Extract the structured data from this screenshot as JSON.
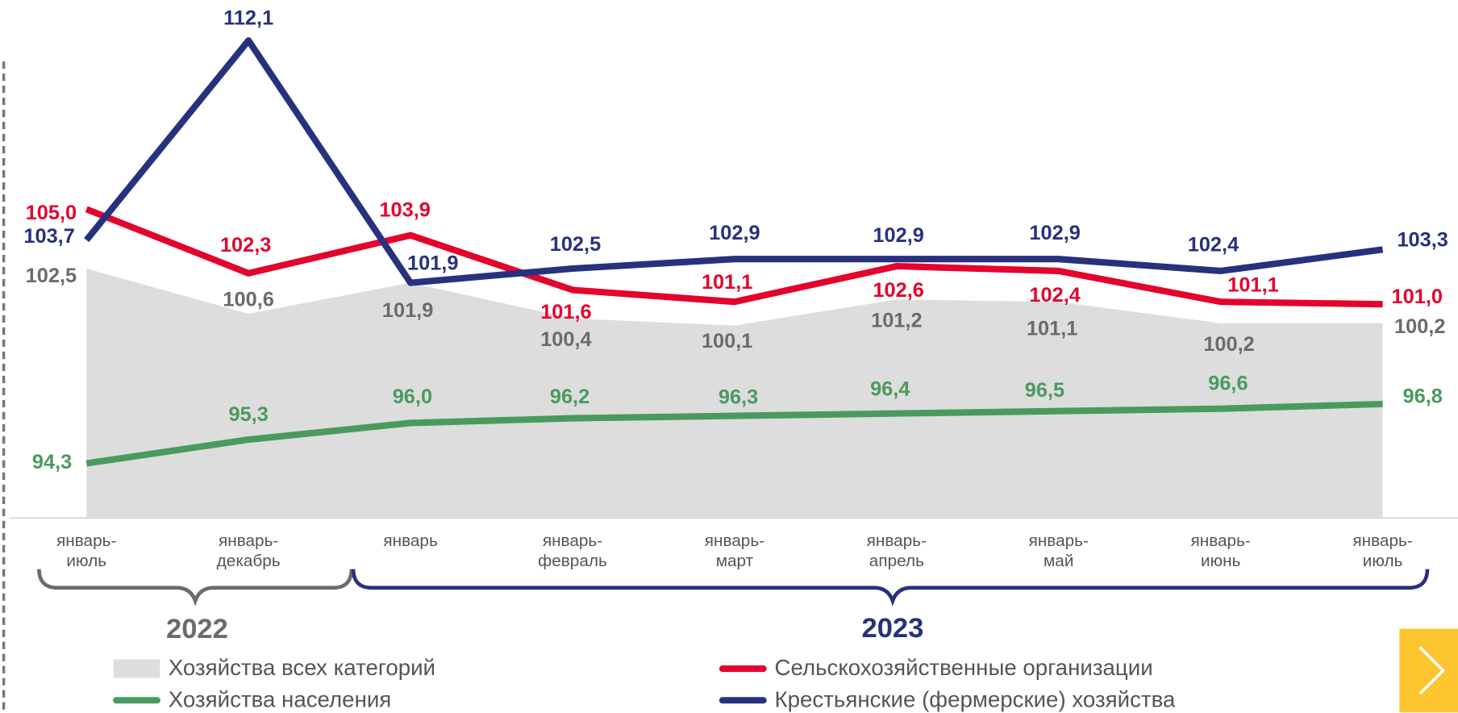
{
  "chart_data": {
    "type": "line",
    "categories": [
      "январь-июль",
      "январь-декабрь",
      "январь",
      "январь-февраль",
      "январь-март",
      "январь-апрель",
      "январь-май",
      "январь-июнь",
      "январь-июль"
    ],
    "periods": [
      "2022",
      "2023"
    ],
    "ylim": [
      92,
      114
    ],
    "series": [
      {
        "name": "Хозяйства всех категорий",
        "type": "area",
        "color": "#dddddd",
        "label_color": "#6b6b6b",
        "values": [
          102.5,
          100.6,
          101.9,
          100.4,
          100.1,
          101.2,
          101.1,
          100.2,
          100.2
        ],
        "value_labels": [
          "102,5",
          "100,6",
          "101,9",
          "100,4",
          "100,1",
          "101,2",
          "101,1",
          "100,2",
          "100,2"
        ]
      },
      {
        "name": "Хозяйства населения",
        "type": "line",
        "color": "#4a9a5f",
        "label_color": "#4a9a5f",
        "values": [
          94.3,
          95.3,
          96.0,
          96.2,
          96.3,
          96.4,
          96.5,
          96.6,
          96.8
        ],
        "value_labels": [
          "94,3",
          "95,3",
          "96,0",
          "96,2",
          "96,3",
          "96,4",
          "96,5",
          "96,6",
          "96,8"
        ]
      },
      {
        "name": "Сельскохозяйственные организации",
        "type": "line",
        "color": "#e3032d",
        "label_color": "#e3032d",
        "values": [
          105.0,
          102.3,
          103.9,
          101.6,
          101.1,
          102.6,
          102.4,
          101.1,
          101.0
        ],
        "value_labels": [
          "105,0",
          "102,3",
          "103,9",
          "101,6",
          "101,1",
          "102,6",
          "102,4",
          "101,1",
          "101,0"
        ]
      },
      {
        "name": "Крестьянские (фермерские) хозяйства",
        "type": "line",
        "color": "#27317d",
        "label_color": "#27317d",
        "values": [
          103.7,
          112.1,
          101.9,
          102.5,
          102.9,
          102.9,
          102.9,
          102.4,
          103.3
        ],
        "value_labels": [
          "103,7",
          "112,1",
          "101,9",
          "102,5",
          "102,9",
          "102,9",
          "102,9",
          "102,4",
          "103,3"
        ]
      }
    ]
  }
}
